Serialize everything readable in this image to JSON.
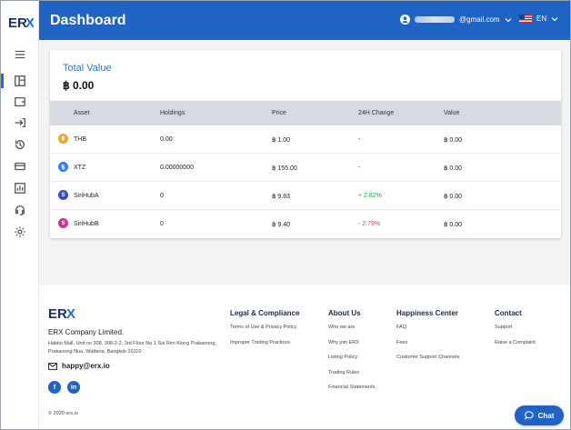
{
  "header": {
    "title": "Dashboard",
    "user_email": "@gmail.com",
    "language": "EN"
  },
  "brand": {
    "accent": "#1f63c5",
    "positive": "#2e9a4a",
    "negative": "#d0404a"
  },
  "sidebar": {
    "items": [
      {
        "icon": "menu-icon"
      },
      {
        "icon": "dashboard-icon",
        "active": true
      },
      {
        "icon": "wallet-icon"
      },
      {
        "icon": "transfer-icon"
      },
      {
        "icon": "history-icon"
      },
      {
        "icon": "card-icon"
      },
      {
        "icon": "chart-icon"
      },
      {
        "icon": "support-icon"
      },
      {
        "icon": "settings-icon"
      }
    ]
  },
  "total": {
    "title": "Total Value",
    "value": "฿ 0.00"
  },
  "table": {
    "headers": [
      "Asset",
      "Holdings",
      "Price",
      "24H Change",
      "Value"
    ],
    "rows": [
      {
        "asset": "THB",
        "holdings": "0.00",
        "price": "฿ 1.00",
        "change": "-",
        "value": "฿ 0.00",
        "coin_color": "#f3a52b",
        "coin_glyph": "฿"
      },
      {
        "asset": "XTZ",
        "holdings": "0.00000000",
        "price": "฿ 155.00",
        "change": "-",
        "value": "฿ 0.00",
        "coin_color": "#2c7df7",
        "coin_glyph": "ꜩ"
      },
      {
        "asset": "SiriHubA",
        "holdings": "0",
        "price": "฿ 9.83",
        "change": "+ 2.82%",
        "value": "฿ 0.00",
        "coin_color": "#3b4bc8",
        "coin_glyph": "S"
      },
      {
        "asset": "SiriHubB",
        "holdings": "0",
        "price": "฿ 9.40",
        "change": "- 2.79%",
        "value": "฿ 0.00",
        "coin_color": "#d22f8e",
        "coin_glyph": "S"
      }
    ]
  },
  "footer": {
    "logo_text": "ERX",
    "company": "ERX Company Limited.",
    "address": "Habito Mall, Unit no 308, 308-2-2, 3rd Floor No 1 Soi Rim Klong Prakanong, Prakanong Nua, Wattana, Bangkok 10110",
    "email": "happy@erx.io",
    "copyright": "© 2020 erx.io",
    "social": [
      "f",
      "in"
    ],
    "columns": [
      {
        "title": "Legal & Compliance",
        "links": [
          "Terms of Use & Privacy Policy",
          "Improper Trading Practices"
        ]
      },
      {
        "title": "About Us",
        "links": [
          "Who we are",
          "Why join ERX",
          "Listing Policy",
          "Trading Rules",
          "Financial Statements"
        ]
      },
      {
        "title": "Happiness Center",
        "links": [
          "FAQ",
          "Fees",
          "Customer Support Channels"
        ]
      },
      {
        "title": "Contact",
        "links": [
          "Support",
          "Raise a Complaint"
        ]
      }
    ]
  },
  "chat": {
    "label": "Chat"
  }
}
